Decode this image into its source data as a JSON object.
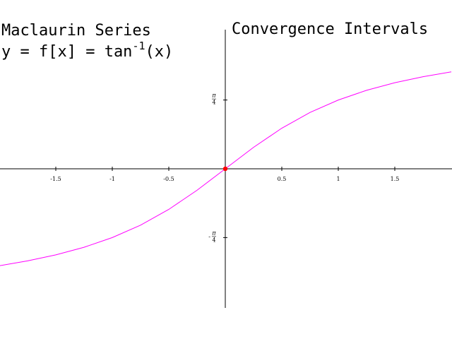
{
  "window": {
    "title_line1": "Maclaurin Series",
    "title_line2_prefix": "y = f[x] =  tan",
    "title_line2_sup": "-1",
    "title_line2_suffix": "(x)",
    "title_right": "Convergence Intervals"
  },
  "chart_data": {
    "type": "line",
    "xlim": [
      -2,
      2
    ],
    "ylim": [
      -1.25,
      1.25
    ],
    "grid": false,
    "x_ticks": [
      {
        "value": -1.5,
        "label": "-1.5"
      },
      {
        "value": -1,
        "label": "-1"
      },
      {
        "value": -0.5,
        "label": "-0.5"
      },
      {
        "value": 0.5,
        "label": "0.5"
      },
      {
        "value": 1,
        "label": "1"
      },
      {
        "value": 1.5,
        "label": "1.5"
      }
    ],
    "y_ticks": [
      {
        "value": 0.7854,
        "num": "π",
        "den": "4",
        "sign": ""
      },
      {
        "value": -0.7854,
        "num": "π",
        "den": "4",
        "sign": "-"
      }
    ],
    "series": [
      {
        "color": "#ff00ff",
        "x": [
          -2,
          -1.75,
          -1.5,
          -1.25,
          -1,
          -0.75,
          -0.5,
          -0.25,
          0,
          0.25,
          0.5,
          0.75,
          1,
          1.25,
          1.5,
          1.75,
          2
        ],
        "y": [
          -1.1071,
          -1.0517,
          -0.9828,
          -0.8961,
          -0.7854,
          -0.6435,
          -0.4636,
          -0.245,
          0,
          0.245,
          0.4636,
          0.6435,
          0.7854,
          0.8961,
          0.9828,
          1.0517,
          1.1071
        ]
      }
    ],
    "marker": {
      "x": 0,
      "y": 0,
      "color": "#ff0000"
    }
  }
}
